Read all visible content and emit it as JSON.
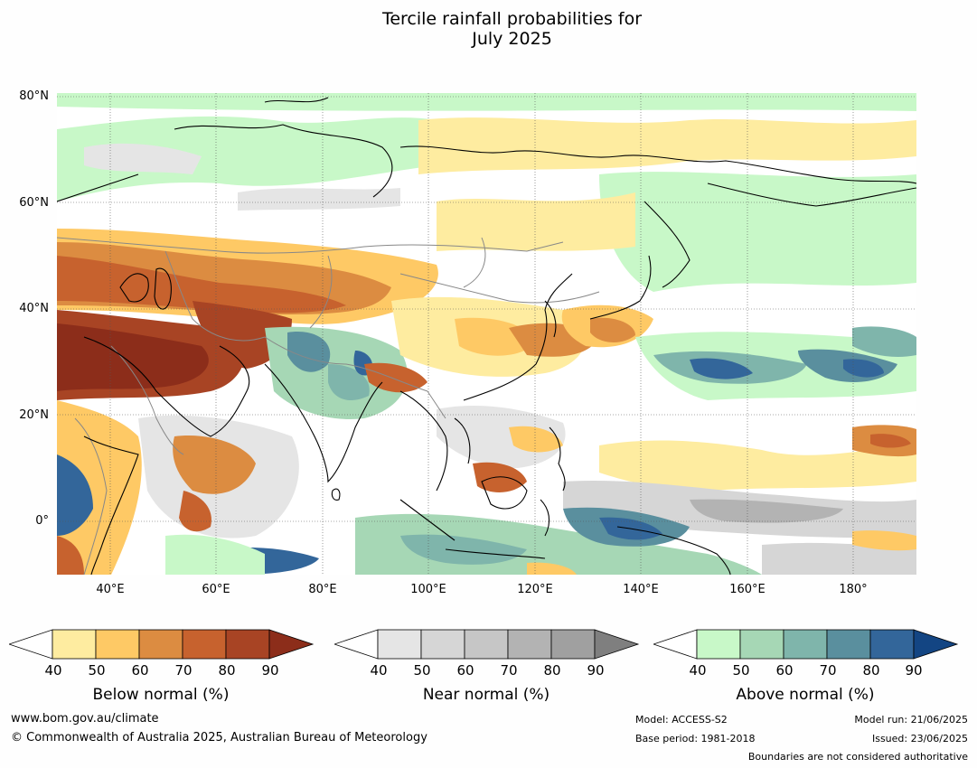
{
  "title": {
    "line1": "Tercile rainfall probabilities for",
    "line2": "July 2025"
  },
  "map": {
    "lat_labels": [
      "80°N",
      "60°N",
      "40°N",
      "20°N",
      "0°"
    ],
    "lon_labels": [
      "40°E",
      "60°E",
      "80°E",
      "100°E",
      "120°E",
      "140°E",
      "160°E",
      "180°"
    ],
    "region": "Asia, Middle East, north-east Africa and western Pacific",
    "extent": {
      "lon_min": 30,
      "lon_max": 192,
      "lat_min": -10,
      "lat_max": 81
    }
  },
  "colorbars": [
    {
      "title": "Below normal (%)",
      "ticks": [
        "40",
        "50",
        "60",
        "70",
        "80",
        "90"
      ],
      "colors": [
        "#ffffff",
        "#feeca0",
        "#fec965",
        "#dc8c41",
        "#c7622e",
        "#a84424",
        "#8c2d1a"
      ]
    },
    {
      "title": "Near normal (%)",
      "ticks": [
        "40",
        "50",
        "60",
        "70",
        "80",
        "90"
      ],
      "colors": [
        "#ffffff",
        "#e5e5e5",
        "#d6d6d6",
        "#c6c6c6",
        "#b3b3b3",
        "#a0a0a0",
        "#7f7f7f"
      ]
    },
    {
      "title": "Above normal (%)",
      "ticks": [
        "40",
        "50",
        "60",
        "70",
        "80",
        "90"
      ],
      "colors": [
        "#ffffff",
        "#c8f8c8",
        "#a6d7b5",
        "#7fb5ab",
        "#5a8f9e",
        "#33669a",
        "#134583"
      ]
    }
  ],
  "footer": {
    "website": "www.bom.gov.au/climate",
    "copyright": "© Commonwealth of Australia 2025, Australian Bureau of Meteorology",
    "model": "Model: ACCESS-S2",
    "base_period": "Base period: 1981-2018",
    "model_run": "Model run: 21/06/2025",
    "issued": "Issued: 23/06/2025",
    "disclaimer": "Boundaries are not considered authoritative"
  }
}
